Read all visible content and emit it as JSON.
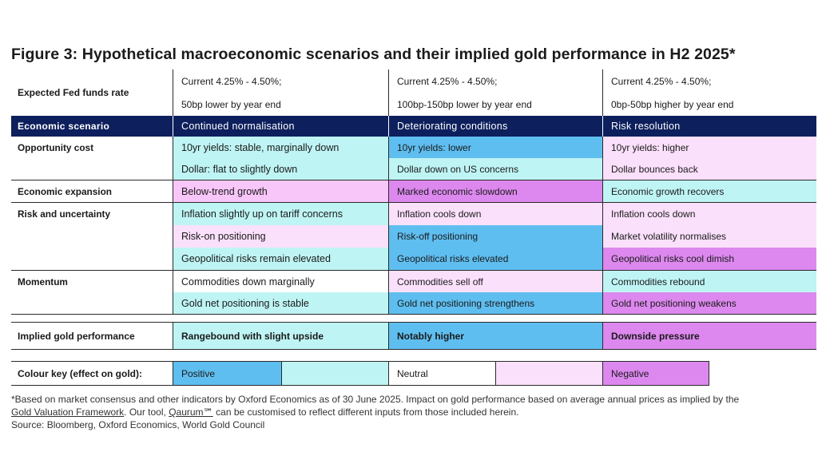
{
  "title": "Figure 3: Hypothetical macroeconomic scenarios and their implied gold performance in H2 2025*",
  "fed": {
    "label": "Expected Fed funds rate",
    "cols": [
      {
        "line1": "Current 4.25% - 4.50%;",
        "line2": "50bp lower by year end"
      },
      {
        "line1": "Current 4.25% - 4.50%;",
        "line2": "100bp-150bp lower by year end"
      },
      {
        "line1": "Current 4.25% - 4.50%;",
        "line2": "0bp-50bp higher by year end"
      }
    ]
  },
  "header": {
    "label": "Economic scenario",
    "cols": [
      "Continued normalisation",
      "Deteriorating conditions",
      "Risk resolution"
    ]
  },
  "sections": [
    {
      "label": "Opportunity cost",
      "rows": [
        [
          "10yr yields: stable, marginally down",
          "10yr yields: lower",
          "10yr yields: higher"
        ],
        [
          "Dollar: flat to slightly down",
          "Dollar down on US concerns",
          "Dollar bounces back"
        ]
      ]
    },
    {
      "label": "Economic expansion",
      "rows": [
        [
          "Below-trend growth",
          "Marked economic slowdown",
          "Economic growth recovers"
        ]
      ]
    },
    {
      "label": "Risk and uncertainty",
      "rows": [
        [
          "Inflation slightly up on tariff concerns",
          "Inflation cools down",
          "Inflation cools down"
        ],
        [
          "Risk-on positioning",
          "Risk-off positioning",
          "Market volatility normalises"
        ],
        [
          "Geopolitical risks remain elevated",
          "Geopolitical risks elevated",
          "Geopolitical risks cool dimish"
        ]
      ]
    },
    {
      "label": "Momentum",
      "rows": [
        [
          "Commodities down marginally",
          "Commodities sell off",
          "Commodities rebound"
        ],
        [
          "Gold net positioning is stable",
          "Gold net positioning strengthens",
          "Gold net positioning weakens"
        ]
      ]
    }
  ],
  "implied": {
    "label": "Implied gold performance",
    "cols": [
      "Rangebound with slight upside",
      "Notably higher",
      "Downside pressure"
    ]
  },
  "key": {
    "label": "Colour key (effect on gold):",
    "positive": "Positive",
    "neutral": "Neutral",
    "negative": "Negative"
  },
  "footnote": {
    "line1": "*Based on market consensus and other indicators by Oxford Economics as of 30 June 2025. Impact on gold performance based on average annual prices as implied by the",
    "link1": "Gold Valuation Framework",
    "mid": ". Our tool,",
    "link2": "Qaurum℠",
    "end": "can be customised to reflect different inputs from those included herein.",
    "source": "Source: Bloomberg, Oxford Economics, World Gold Council"
  },
  "colors": {
    "header_navy": "#0d1f5c",
    "positive_light": "#bff4f4",
    "positive_strong": "#5fbef0",
    "neutral": "#ffffff",
    "negative_light": "#fbe0fb",
    "negative_mid": "#f8c6f8",
    "negative_strong": "#dc88ee"
  }
}
